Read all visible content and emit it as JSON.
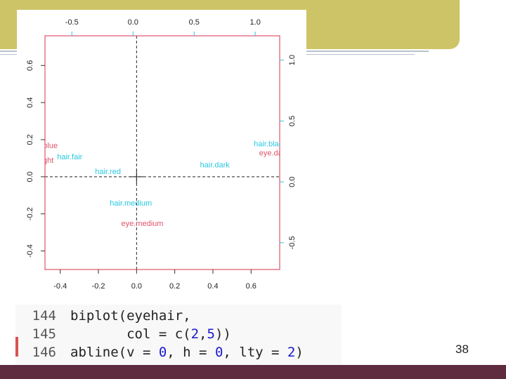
{
  "chart_data": {
    "type": "scatter",
    "subtype": "biplot",
    "title": "",
    "bottom_axis": {
      "range": [
        -0.48,
        0.75
      ],
      "ticks": [
        -0.4,
        -0.2,
        0.0,
        0.2,
        0.4,
        0.6
      ]
    },
    "left_axis": {
      "range": [
        -0.5,
        0.76
      ],
      "ticks": [
        -0.4,
        -0.2,
        0.0,
        0.2,
        0.4,
        0.6
      ]
    },
    "top_axis": {
      "range": [
        -0.72,
        1.2
      ],
      "ticks": [
        -0.5,
        0.0,
        0.5,
        1.0
      ]
    },
    "right_axis": {
      "range": [
        -0.72,
        1.2
      ],
      "ticks": [
        -0.5,
        0.0,
        0.5,
        1.0
      ]
    },
    "reference_lines": {
      "v": 0,
      "h": 0,
      "lty": "dashed"
    },
    "series": [
      {
        "color": "#df536b",
        "points": [
          {
            "label": "eye.blue",
            "x": -0.49,
            "y": 0.17
          },
          {
            "label": "eye.light",
            "x": -0.51,
            "y": 0.09
          },
          {
            "label": "eye.dark",
            "x": 0.72,
            "y": 0.13
          },
          {
            "label": "eye.medium",
            "x": 0.03,
            "y": -0.25
          }
        ]
      },
      {
        "color": "#28c8e0",
        "points": [
          {
            "label": "hair.fair",
            "x": -0.35,
            "y": 0.11
          },
          {
            "label": "hair.red",
            "x": -0.15,
            "y": 0.03
          },
          {
            "label": "hair.dark",
            "x": 0.41,
            "y": 0.065
          },
          {
            "label": "hair.black",
            "x": 0.7,
            "y": 0.18
          },
          {
            "label": "hair.medium",
            "x": -0.03,
            "y": -0.14
          }
        ]
      }
    ]
  },
  "code": {
    "lines": [
      {
        "num": "144",
        "segments": [
          {
            "text": "biplot(eyehair,",
            "kind": "plain"
          }
        ]
      },
      {
        "num": "145",
        "segments": [
          {
            "text": "       col = c(",
            "kind": "plain"
          },
          {
            "text": "2",
            "kind": "num"
          },
          {
            "text": ",",
            "kind": "plain"
          },
          {
            "text": "5",
            "kind": "num"
          },
          {
            "text": "))",
            "kind": "plain"
          }
        ]
      },
      {
        "num": "146",
        "segments": [
          {
            "text": "abline(v = ",
            "kind": "plain"
          },
          {
            "text": "0",
            "kind": "num"
          },
          {
            "text": ", h = ",
            "kind": "plain"
          },
          {
            "text": "0",
            "kind": "num"
          },
          {
            "text": ", lty = ",
            "kind": "plain"
          },
          {
            "text": "2",
            "kind": "num"
          },
          {
            "text": ")",
            "kind": "plain"
          }
        ]
      }
    ]
  },
  "page_number": "38",
  "colors": {
    "title_bar": "#cdc468",
    "footer_bar": "#5e2b3f",
    "frame": "#df536b",
    "axis_right_top": "#28c8e0"
  }
}
